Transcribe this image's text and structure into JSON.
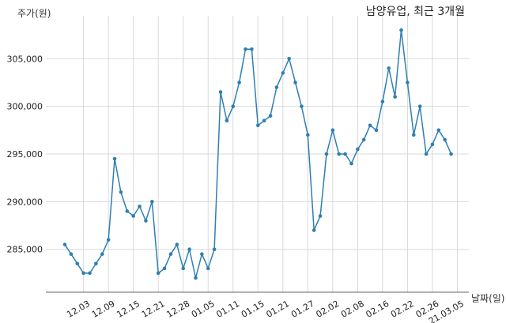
{
  "chart_data": {
    "type": "line",
    "title": "남양유업, 최근 3개월",
    "xlabel": "날짜(일)",
    "ylabel": "주가(원)",
    "ylim": [
      280500,
      309500
    ],
    "yticks": [
      285000,
      290000,
      295000,
      300000,
      305000
    ],
    "ytick_labels": [
      "285,000",
      "290,000",
      "295,000",
      "300,000",
      "305,000"
    ],
    "xtick_labels": [
      "12.03",
      "12.09",
      "12.15",
      "12.21",
      "12.28",
      "01.05",
      "01.11",
      "01.15",
      "01.21",
      "01.27",
      "02.02",
      "02.08",
      "02.16",
      "02.22",
      "02.26",
      "21.03.05"
    ],
    "xtick_index": [
      3,
      7,
      11,
      15,
      19,
      23,
      27,
      31,
      35,
      39,
      43,
      47,
      51,
      55,
      59,
      63
    ],
    "grid": true,
    "color": "#2f7fb0",
    "series": [
      {
        "values": [
          285500,
          284500,
          283500,
          282500,
          282500,
          283500,
          284500,
          286000,
          294500,
          291000,
          289000,
          288500,
          289500,
          288000,
          290000,
          282500,
          283000,
          284500,
          285500,
          283000,
          285000,
          282000,
          284500,
          283000,
          285000,
          301500,
          298500,
          300000,
          302500,
          306000,
          306000,
          298000,
          298500,
          299000,
          302000,
          303500,
          305000,
          302500,
          300000,
          297000,
          287000,
          288500,
          295000,
          297500,
          295000,
          295000,
          294000,
          295500,
          296500,
          298000,
          297500,
          300500,
          304000,
          301000,
          308000,
          302500,
          297000,
          300000,
          295000,
          296000,
          297500,
          296500,
          295000
        ]
      }
    ]
  }
}
